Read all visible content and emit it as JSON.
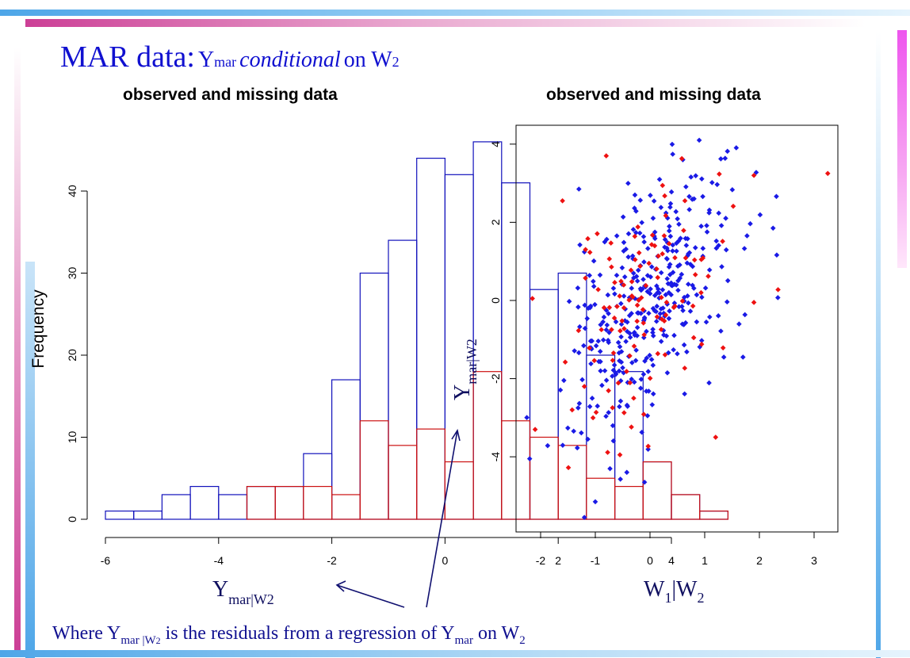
{
  "slide": {
    "title_main": "MAR data:",
    "title_y": "Y",
    "title_y_sub": "mar",
    "title_conditional": "conditional",
    "title_on": "on W",
    "title_w_sub": "2"
  },
  "footnote": {
    "lead": "Where Y",
    "sub1": "mar |W",
    "sub1b": "2",
    "mid": " is the residuals from a regression of  Y",
    "sub2": "mar",
    "tail": " on W",
    "sub3": "2"
  },
  "colors": {
    "observed": "#1111bb",
    "missing": "#cc1111",
    "scatter_observed": "#1a1ae6",
    "scatter_missing": "#ee1111",
    "title": "#1010d0"
  },
  "chart_data": [
    {
      "type": "bar",
      "subtype": "histogram",
      "title": "observed and missing data",
      "xlabel": "Y",
      "xlabel_sub": "mar|W2",
      "ylabel": "Frequency",
      "bin_width": 0.5,
      "bin_start": -6,
      "xlim": [
        -6,
        4.5
      ],
      "ylim": [
        0,
        46
      ],
      "xticks": [
        -6,
        -4,
        -2,
        0,
        2,
        4
      ],
      "yticks": [
        0,
        10,
        20,
        30,
        40
      ],
      "series": [
        {
          "name": "observed and missing",
          "values": [
            1,
            1,
            3,
            4,
            3,
            4,
            4,
            8,
            17,
            30,
            34,
            44,
            42,
            46,
            41,
            28,
            30,
            20,
            18,
            7,
            3,
            1
          ]
        },
        {
          "name": "missing",
          "values": [
            0,
            0,
            0,
            0,
            0,
            4,
            4,
            4,
            3,
            12,
            9,
            11,
            7,
            18,
            12,
            10,
            9,
            5,
            4,
            7,
            3,
            1
          ]
        }
      ]
    },
    {
      "type": "scatter",
      "title": "observed and missing data",
      "xlabel": "W",
      "xlabel_sub1": "1",
      "xlabel_mid": "|W",
      "xlabel_sub2": "2",
      "ylabel": "Y",
      "ylabel_sub": "mar|W2",
      "xlim": [
        -2.4,
        3.4
      ],
      "ylim": [
        -5.7,
        4.5
      ],
      "xticks": [
        -2,
        -1,
        0,
        1,
        2,
        3
      ],
      "yticks": [
        -4,
        -2,
        0,
        2,
        4
      ],
      "n_observed": 380,
      "n_missing": 120,
      "correlation": 0.45,
      "seed": 7,
      "points_observed_sample": [
        [
          -2.2,
          -4.05
        ],
        [
          -1.3,
          2.85
        ],
        [
          -1.0,
          -5.15
        ],
        [
          -1.2,
          -5.55
        ],
        [
          0.9,
          4.1
        ],
        [
          0.6,
          3.6
        ],
        [
          2.25,
          1.85
        ],
        [
          1.7,
          -1.45
        ],
        [
          -0.1,
          -4.65
        ],
        [
          1.35,
          -1.45
        ]
      ],
      "points_missing_sample": [
        [
          -2.1,
          -3.3
        ],
        [
          -2.15,
          0.05
        ],
        [
          -1.2,
          -2.2
        ],
        [
          3.25,
          3.25
        ],
        [
          1.2,
          -3.5
        ],
        [
          -0.8,
          3.7
        ],
        [
          -1.6,
          2.55
        ],
        [
          1.9,
          3.2
        ],
        [
          1.9,
          -0.05
        ],
        [
          -0.55,
          -3.95
        ]
      ]
    }
  ]
}
